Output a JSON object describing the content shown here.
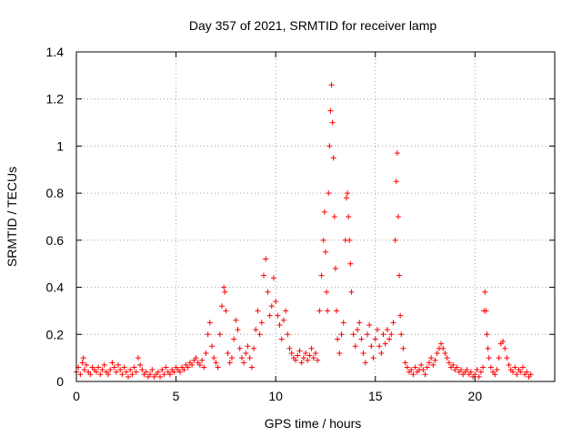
{
  "chart_data": {
    "type": "scatter",
    "title": "Day 357 of 2021, SRMTID for receiver lamp",
    "xlabel": "GPS time / hours",
    "ylabel": "SRMTID / TECUs",
    "xlim": [
      0,
      24
    ],
    "ylim": [
      0,
      1.4
    ],
    "xticks": [
      0,
      5,
      10,
      15,
      20
    ],
    "xtick_labels": [
      "0",
      "5",
      "10",
      "15",
      "20"
    ],
    "yticks": [
      0,
      0.2,
      0.4,
      0.6,
      0.8,
      1.0,
      1.2,
      1.4
    ],
    "ytick_labels": [
      "0",
      "0.2",
      "0.4",
      "0.6",
      "0.8",
      "1",
      "1.2",
      "1.4"
    ],
    "grid": true,
    "marker": "plus",
    "color": "#ff0000",
    "series": [
      {
        "name": "SRMTID",
        "points": [
          [
            0.0,
            0.04
          ],
          [
            0.1,
            0.06
          ],
          [
            0.2,
            0.03
          ],
          [
            0.3,
            0.08
          ],
          [
            0.35,
            0.1
          ],
          [
            0.4,
            0.05
          ],
          [
            0.5,
            0.07
          ],
          [
            0.6,
            0.04
          ],
          [
            0.7,
            0.03
          ],
          [
            0.8,
            0.06
          ],
          [
            0.9,
            0.05
          ],
          [
            1.0,
            0.04
          ],
          [
            1.1,
            0.06
          ],
          [
            1.2,
            0.03
          ],
          [
            1.3,
            0.05
          ],
          [
            1.4,
            0.07
          ],
          [
            1.5,
            0.04
          ],
          [
            1.6,
            0.03
          ],
          [
            1.7,
            0.05
          ],
          [
            1.8,
            0.08
          ],
          [
            1.9,
            0.06
          ],
          [
            2.0,
            0.04
          ],
          [
            2.1,
            0.07
          ],
          [
            2.2,
            0.05
          ],
          [
            2.3,
            0.03
          ],
          [
            2.4,
            0.06
          ],
          [
            2.5,
            0.04
          ],
          [
            2.6,
            0.02
          ],
          [
            2.7,
            0.05
          ],
          [
            2.8,
            0.03
          ],
          [
            2.9,
            0.06
          ],
          [
            3.0,
            0.04
          ],
          [
            3.1,
            0.1
          ],
          [
            3.2,
            0.07
          ],
          [
            3.3,
            0.05
          ],
          [
            3.4,
            0.03
          ],
          [
            3.5,
            0.04
          ],
          [
            3.6,
            0.02
          ],
          [
            3.7,
            0.03
          ],
          [
            3.8,
            0.05
          ],
          [
            3.9,
            0.02
          ],
          [
            4.0,
            0.03
          ],
          [
            4.1,
            0.04
          ],
          [
            4.2,
            0.02
          ],
          [
            4.3,
            0.05
          ],
          [
            4.4,
            0.03
          ],
          [
            4.5,
            0.06
          ],
          [
            4.6,
            0.04
          ],
          [
            4.7,
            0.03
          ],
          [
            4.8,
            0.05
          ],
          [
            4.9,
            0.04
          ],
          [
            5.0,
            0.06
          ],
          [
            5.1,
            0.05
          ],
          [
            5.2,
            0.04
          ],
          [
            5.3,
            0.06
          ],
          [
            5.4,
            0.05
          ],
          [
            5.5,
            0.07
          ],
          [
            5.6,
            0.06
          ],
          [
            5.7,
            0.08
          ],
          [
            5.8,
            0.07
          ],
          [
            5.9,
            0.09
          ],
          [
            6.0,
            0.1
          ],
          [
            6.1,
            0.08
          ],
          [
            6.2,
            0.07
          ],
          [
            6.3,
            0.09
          ],
          [
            6.4,
            0.06
          ],
          [
            6.5,
            0.12
          ],
          [
            6.6,
            0.2
          ],
          [
            6.7,
            0.25
          ],
          [
            6.8,
            0.15
          ],
          [
            6.9,
            0.1
          ],
          [
            7.0,
            0.08
          ],
          [
            7.1,
            0.06
          ],
          [
            7.2,
            0.2
          ],
          [
            7.3,
            0.32
          ],
          [
            7.4,
            0.4
          ],
          [
            7.45,
            0.38
          ],
          [
            7.5,
            0.3
          ],
          [
            7.6,
            0.12
          ],
          [
            7.7,
            0.08
          ],
          [
            7.8,
            0.1
          ],
          [
            7.9,
            0.18
          ],
          [
            8.0,
            0.26
          ],
          [
            8.1,
            0.22
          ],
          [
            8.2,
            0.14
          ],
          [
            8.3,
            0.1
          ],
          [
            8.4,
            0.08
          ],
          [
            8.5,
            0.12
          ],
          [
            8.6,
            0.15
          ],
          [
            8.7,
            0.1
          ],
          [
            8.8,
            0.06
          ],
          [
            8.9,
            0.14
          ],
          [
            9.0,
            0.22
          ],
          [
            9.1,
            0.3
          ],
          [
            9.2,
            0.2
          ],
          [
            9.3,
            0.25
          ],
          [
            9.4,
            0.45
          ],
          [
            9.5,
            0.52
          ],
          [
            9.6,
            0.38
          ],
          [
            9.7,
            0.28
          ],
          [
            9.8,
            0.32
          ],
          [
            9.9,
            0.44
          ],
          [
            10.0,
            0.34
          ],
          [
            10.1,
            0.28
          ],
          [
            10.2,
            0.24
          ],
          [
            10.3,
            0.18
          ],
          [
            10.4,
            0.26
          ],
          [
            10.5,
            0.3
          ],
          [
            10.6,
            0.2
          ],
          [
            10.7,
            0.14
          ],
          [
            10.8,
            0.12
          ],
          [
            10.9,
            0.1
          ],
          [
            11.0,
            0.09
          ],
          [
            11.1,
            0.11
          ],
          [
            11.2,
            0.13
          ],
          [
            11.3,
            0.08
          ],
          [
            11.4,
            0.1
          ],
          [
            11.5,
            0.12
          ],
          [
            11.6,
            0.09
          ],
          [
            11.7,
            0.11
          ],
          [
            11.8,
            0.14
          ],
          [
            11.9,
            0.1
          ],
          [
            12.0,
            0.12
          ],
          [
            12.1,
            0.09
          ],
          [
            12.2,
            0.3
          ],
          [
            12.3,
            0.45
          ],
          [
            12.4,
            0.6
          ],
          [
            12.45,
            0.72
          ],
          [
            12.5,
            0.55
          ],
          [
            12.55,
            0.38
          ],
          [
            12.6,
            0.3
          ],
          [
            12.65,
            0.8
          ],
          [
            12.7,
            1.0
          ],
          [
            12.75,
            1.15
          ],
          [
            12.8,
            1.26
          ],
          [
            12.85,
            1.1
          ],
          [
            12.9,
            0.95
          ],
          [
            12.95,
            0.7
          ],
          [
            13.0,
            0.48
          ],
          [
            13.05,
            0.3
          ],
          [
            13.1,
            0.18
          ],
          [
            13.2,
            0.12
          ],
          [
            13.3,
            0.2
          ],
          [
            13.4,
            0.25
          ],
          [
            13.5,
            0.6
          ],
          [
            13.55,
            0.78
          ],
          [
            13.6,
            0.8
          ],
          [
            13.65,
            0.7
          ],
          [
            13.7,
            0.6
          ],
          [
            13.75,
            0.5
          ],
          [
            13.8,
            0.38
          ],
          [
            13.9,
            0.2
          ],
          [
            14.0,
            0.15
          ],
          [
            14.1,
            0.22
          ],
          [
            14.2,
            0.25
          ],
          [
            14.3,
            0.18
          ],
          [
            14.4,
            0.12
          ],
          [
            14.5,
            0.08
          ],
          [
            14.6,
            0.2
          ],
          [
            14.7,
            0.24
          ],
          [
            14.8,
            0.15
          ],
          [
            14.9,
            0.1
          ],
          [
            15.0,
            0.18
          ],
          [
            15.1,
            0.22
          ],
          [
            15.2,
            0.15
          ],
          [
            15.3,
            0.12
          ],
          [
            15.4,
            0.2
          ],
          [
            15.5,
            0.16
          ],
          [
            15.6,
            0.22
          ],
          [
            15.7,
            0.18
          ],
          [
            15.8,
            0.2
          ],
          [
            15.9,
            0.25
          ],
          [
            16.0,
            0.6
          ],
          [
            16.05,
            0.85
          ],
          [
            16.1,
            0.97
          ],
          [
            16.15,
            0.7
          ],
          [
            16.2,
            0.45
          ],
          [
            16.25,
            0.28
          ],
          [
            16.3,
            0.2
          ],
          [
            16.4,
            0.14
          ],
          [
            16.5,
            0.08
          ],
          [
            16.6,
            0.06
          ],
          [
            16.7,
            0.04
          ],
          [
            16.8,
            0.05
          ],
          [
            16.9,
            0.03
          ],
          [
            17.0,
            0.06
          ],
          [
            17.1,
            0.04
          ],
          [
            17.2,
            0.05
          ],
          [
            17.3,
            0.07
          ],
          [
            17.4,
            0.05
          ],
          [
            17.5,
            0.03
          ],
          [
            17.6,
            0.06
          ],
          [
            17.7,
            0.08
          ],
          [
            17.8,
            0.1
          ],
          [
            17.9,
            0.07
          ],
          [
            18.0,
            0.09
          ],
          [
            18.1,
            0.12
          ],
          [
            18.2,
            0.14
          ],
          [
            18.3,
            0.16
          ],
          [
            18.4,
            0.14
          ],
          [
            18.5,
            0.12
          ],
          [
            18.6,
            0.1
          ],
          [
            18.7,
            0.08
          ],
          [
            18.8,
            0.06
          ],
          [
            18.9,
            0.07
          ],
          [
            19.0,
            0.05
          ],
          [
            19.1,
            0.06
          ],
          [
            19.2,
            0.04
          ],
          [
            19.3,
            0.05
          ],
          [
            19.4,
            0.03
          ],
          [
            19.5,
            0.04
          ],
          [
            19.6,
            0.05
          ],
          [
            19.7,
            0.03
          ],
          [
            19.8,
            0.04
          ],
          [
            19.9,
            0.02
          ],
          [
            20.0,
            0.03
          ],
          [
            20.1,
            0.05
          ],
          [
            20.2,
            0.02
          ],
          [
            20.3,
            0.04
          ],
          [
            20.4,
            0.06
          ],
          [
            20.45,
            0.3
          ],
          [
            20.5,
            0.38
          ],
          [
            20.55,
            0.3
          ],
          [
            20.6,
            0.2
          ],
          [
            20.65,
            0.14
          ],
          [
            20.7,
            0.1
          ],
          [
            20.8,
            0.06
          ],
          [
            20.9,
            0.04
          ],
          [
            21.0,
            0.03
          ],
          [
            21.1,
            0.05
          ],
          [
            21.2,
            0.1
          ],
          [
            21.3,
            0.16
          ],
          [
            21.4,
            0.17
          ],
          [
            21.5,
            0.14
          ],
          [
            21.6,
            0.1
          ],
          [
            21.7,
            0.07
          ],
          [
            21.8,
            0.05
          ],
          [
            21.9,
            0.04
          ],
          [
            22.0,
            0.06
          ],
          [
            22.1,
            0.03
          ],
          [
            22.2,
            0.05
          ],
          [
            22.3,
            0.04
          ],
          [
            22.4,
            0.06
          ],
          [
            22.5,
            0.03
          ],
          [
            22.6,
            0.04
          ],
          [
            22.7,
            0.02
          ],
          [
            22.8,
            0.03
          ]
        ]
      }
    ]
  }
}
